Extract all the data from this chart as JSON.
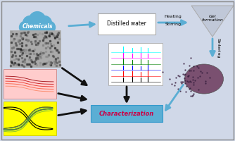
{
  "bg_color": "#d0d8e8",
  "border_color": "#888888",
  "title": "",
  "chemicals_text": "Chemicals",
  "distilled_water_text": "Distilled water",
  "heating_stirring_text": "Heating\nStirring",
  "gel_formation_text": "Gel\nformation",
  "sintering_text": "Sintering",
  "characterization_text": "Characterization",
  "cloud_color": "#5baed4",
  "box_color": "#ffffff",
  "arrow_color": "#5baed4",
  "triangle_color": "#c0c8d8",
  "char_box_color": "#5baed4",
  "char_text_color": "#cc0044",
  "xrd_bg": "#ffffff",
  "pink_plot_bg": "#ffcccc",
  "yellow_plot_bg": "#ffff00",
  "black_arrow_color": "#111111"
}
